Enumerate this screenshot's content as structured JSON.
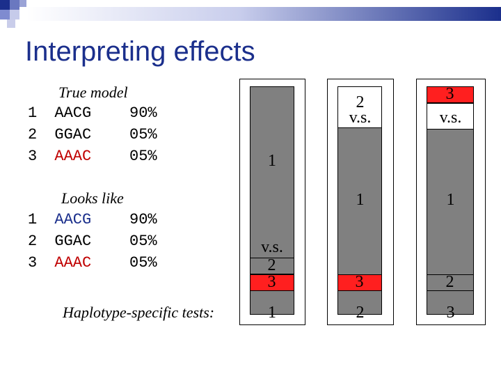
{
  "title": "Interpreting effects",
  "colors": {
    "title": "#1b2f8c",
    "highlight_red": "#c00000",
    "highlight_blue": "#1b2f8c",
    "bar_gray": "#808080",
    "bar_red": "#ff1f1f"
  },
  "true_model": {
    "heading": "True model",
    "rows": [
      {
        "index": "1",
        "seq": "AACG",
        "pct": "90%"
      },
      {
        "index": "2",
        "seq": "GGAC",
        "pct": "05%"
      },
      {
        "index": "3",
        "seq": "AAAC",
        "pct": "05%"
      }
    ]
  },
  "looks_like": {
    "heading": "Looks like",
    "rows": [
      {
        "index": "1",
        "seq": "AACG",
        "pct": "90%"
      },
      {
        "index": "2",
        "seq": "GGAC",
        "pct": "05%"
      },
      {
        "index": "3",
        "seq": "AAAC",
        "pct": "05%"
      }
    ]
  },
  "tests": {
    "label": "Haplotype-specific tests:",
    "columns": [
      {
        "top_label": "1",
        "vs": "v.s.",
        "bottom_a": "2",
        "bottom_b": "3",
        "test_number": "1"
      },
      {
        "top_a": "2",
        "vs": "v.s.",
        "mid": "1",
        "bottom": "3",
        "test_number": "2"
      },
      {
        "top_a": "3",
        "vs": "v.s.",
        "mid": "1",
        "bottom": "2",
        "test_number": "3"
      }
    ]
  }
}
